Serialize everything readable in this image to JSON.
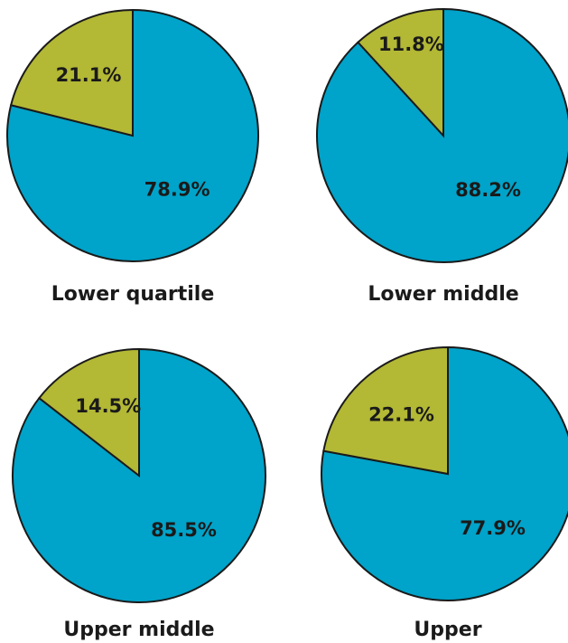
{
  "colors": {
    "major": "#00a3c9",
    "minor": "#b3b835",
    "stroke": "#1a1a1a"
  },
  "chart_data": [
    {
      "type": "pie",
      "title": "Lower quartile",
      "slices": [
        {
          "value": 78.9,
          "label": "78.9%"
        },
        {
          "value": 21.1,
          "label": "21.1%"
        }
      ]
    },
    {
      "type": "pie",
      "title": "Lower middle",
      "slices": [
        {
          "value": 88.2,
          "label": "88.2%"
        },
        {
          "value": 11.8,
          "label": "11.8%"
        }
      ]
    },
    {
      "type": "pie",
      "title": "Upper middle",
      "slices": [
        {
          "value": 85.5,
          "label": "85.5%"
        },
        {
          "value": 14.5,
          "label": "14.5%"
        }
      ]
    },
    {
      "type": "pie",
      "title": "Upper",
      "slices": [
        {
          "value": 77.9,
          "label": "77.9%"
        },
        {
          "value": 22.1,
          "label": "22.1%"
        }
      ]
    }
  ]
}
